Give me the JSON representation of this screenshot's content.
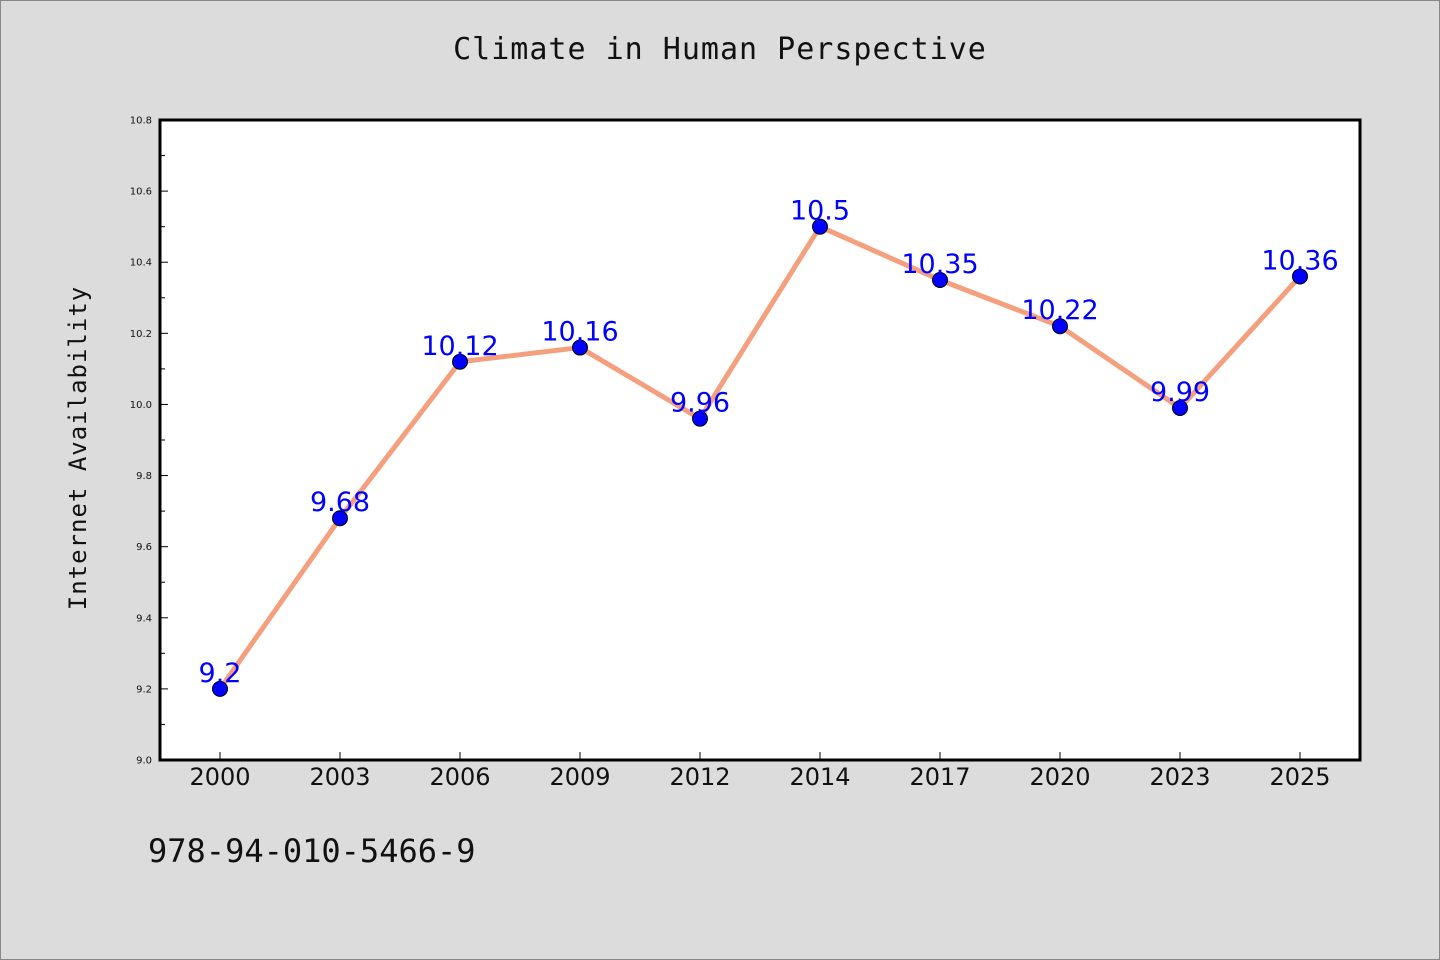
{
  "page": {
    "isbn_text": "978-94-010-5466-9"
  },
  "chart_data": {
    "type": "line",
    "title": "Climate in Human Perspective",
    "xlabel": "",
    "ylabel": "Internet Availability",
    "categories": [
      "2000",
      "2003",
      "2006",
      "2009",
      "2012",
      "2014",
      "2017",
      "2020",
      "2023",
      "2025"
    ],
    "series": [
      {
        "values": [
          9.2,
          9.68,
          10.12,
          10.16,
          9.96,
          10.5,
          10.35,
          10.22,
          9.99,
          10.36
        ],
        "labels": [
          "9.2",
          "9.68",
          "10.12",
          "10.16",
          "9.96",
          "10.5",
          "10.35",
          "10.22",
          "9.99",
          "10.36"
        ],
        "line_color": "#f4a07f",
        "marker_color": "#0000ff"
      }
    ],
    "ylim": [
      9.0,
      10.8
    ],
    "yticks": [
      "9.0",
      "9.2",
      "9.4",
      "9.6",
      "9.8",
      "10.0",
      "10.2",
      "10.4",
      "10.6",
      "10.8"
    ],
    "grid": false,
    "legend": "none"
  }
}
